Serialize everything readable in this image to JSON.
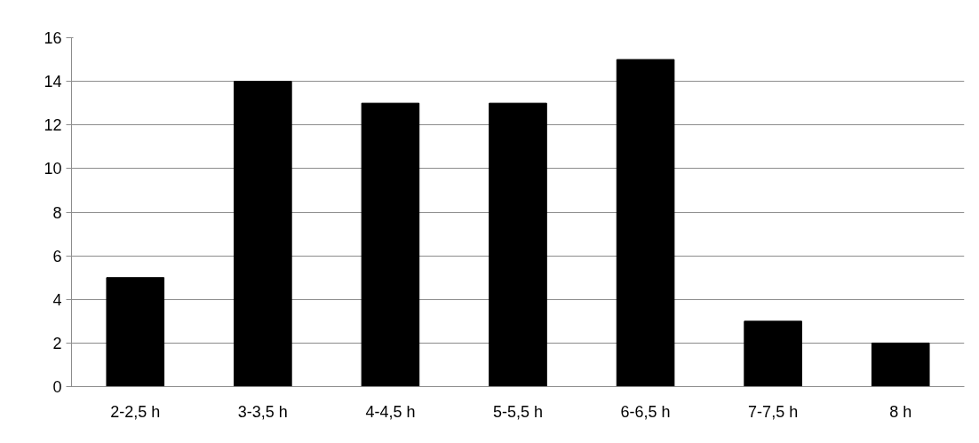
{
  "chart_data": {
    "type": "bar",
    "categories": [
      "2-2,5 h",
      "3-3,5 h",
      "4-4,5 h",
      "5-5,5 h",
      "6-6,5 h",
      "7-7,5 h",
      "8 h"
    ],
    "values": [
      5,
      14,
      13,
      13,
      15,
      3,
      2
    ],
    "color": "#000000",
    "ylim": [
      0,
      16
    ],
    "yticks": [
      0,
      2,
      4,
      6,
      8,
      10,
      12,
      14,
      16
    ],
    "grid": "y"
  }
}
